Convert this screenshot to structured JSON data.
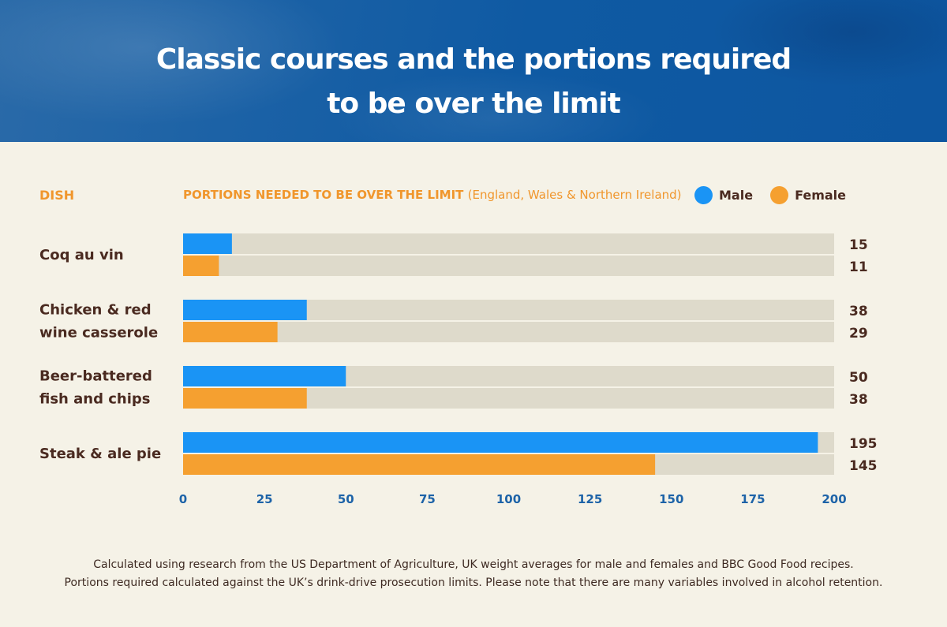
{
  "header": {
    "title_line1": "Classic courses and the portions required",
    "title_line2": "to be over the limit"
  },
  "labels": {
    "dish": "DISH",
    "portions": "PORTIONS NEEDED TO BE OVER THE LIMIT",
    "portions_sub": "(England, Wales & Northern Ireland)"
  },
  "colors": {
    "male": "#1a94f5",
    "female": "#f5a030",
    "track": "#dedacb",
    "text": "#4a2a20",
    "axis": "#1d63a8",
    "accent": "#f0962c"
  },
  "chart_data": {
    "type": "bar",
    "orientation": "horizontal",
    "categories": [
      [
        "Coq au vin"
      ],
      [
        "Chicken & red",
        "wine casserole"
      ],
      [
        "Beer-battered",
        "fish and chips"
      ],
      [
        "Steak & ale pie"
      ]
    ],
    "series": [
      {
        "name": "Male",
        "values": [
          15,
          38,
          50,
          195
        ]
      },
      {
        "name": "Female",
        "values": [
          11,
          29,
          38,
          145
        ]
      }
    ],
    "xlim": [
      0,
      200
    ],
    "ticks": [
      "0",
      "25",
      "50",
      "75",
      "100",
      "125",
      "150",
      "175",
      "200"
    ],
    "legend": "top-right",
    "grid": false
  },
  "footnote": {
    "line1": "Calculated using research from the US Department of Agriculture, UK weight averages for male and females and BBC Good Food recipes.",
    "line2": "Portions required calculated against the UK’s drink-drive prosecution limits. Please note that there are many variables involved in alcohol retention."
  }
}
